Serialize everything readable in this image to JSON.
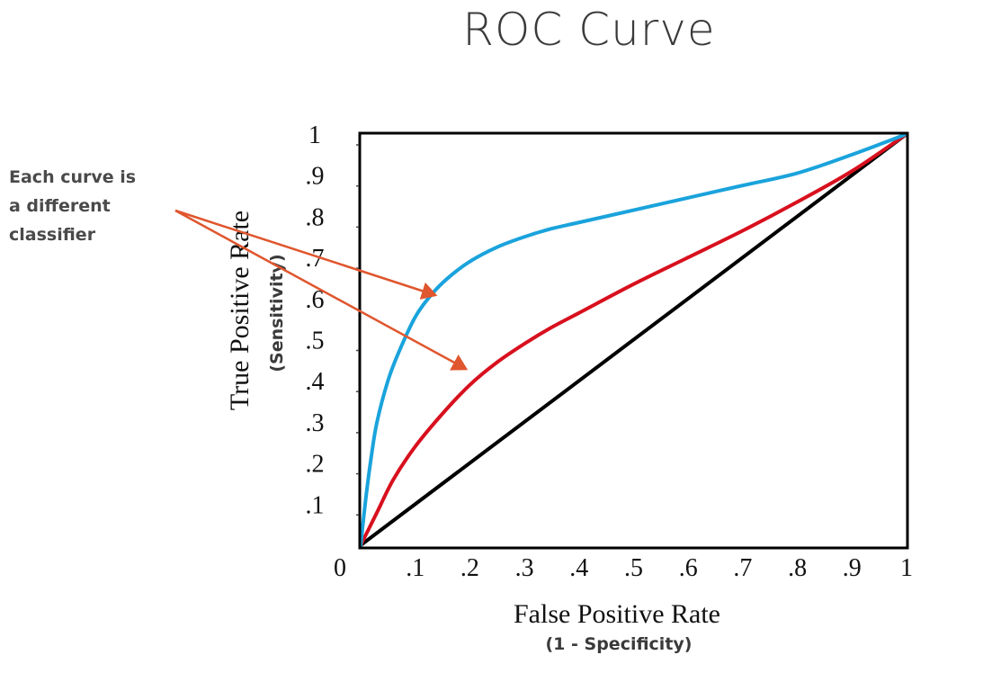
{
  "page": {
    "title": "ROC Curve",
    "annotation_lines": [
      "Each curve is",
      "a different",
      "classifier"
    ]
  },
  "colors": {
    "curve_blue": "#1aa3dc",
    "curve_red": "#d8101e",
    "diagonal": "#000000",
    "arrow": "#e0562e",
    "text": "#4a4a4a"
  },
  "chart_data": {
    "type": "line",
    "title": "ROC Curve",
    "xlabel": "False Positive Rate",
    "xlabel_sub": "(1 - Specificity)",
    "ylabel": "True Positive Rate",
    "ylabel_sub": "(Sensitivity)",
    "xlim": [
      0,
      1
    ],
    "ylim": [
      0,
      1
    ],
    "x_ticks": [
      ".1",
      ".2",
      ".3",
      ".4",
      ".5",
      ".6",
      ".7",
      ".8",
      ".9",
      "1"
    ],
    "y_ticks": [
      ".1",
      ".2",
      ".3",
      ".4",
      ".5",
      ".6",
      ".7",
      ".8",
      ".9",
      "1"
    ],
    "origin_label": "0",
    "grid": false,
    "series": [
      {
        "color": "#1aa3dc",
        "x": [
          0,
          0.01,
          0.02,
          0.03,
          0.05,
          0.07,
          0.1,
          0.13,
          0.16,
          0.2,
          0.25,
          0.3,
          0.35,
          0.4,
          0.5,
          0.6,
          0.7,
          0.8,
          0.9,
          1.0
        ],
        "y": [
          0,
          0.12,
          0.22,
          0.3,
          0.4,
          0.47,
          0.555,
          0.61,
          0.65,
          0.69,
          0.725,
          0.75,
          0.77,
          0.785,
          0.815,
          0.845,
          0.875,
          0.905,
          0.95,
          1.0
        ]
      },
      {
        "color": "#d8101e",
        "x": [
          0,
          0.03,
          0.06,
          0.1,
          0.15,
          0.2,
          0.25,
          0.3,
          0.35,
          0.4,
          0.5,
          0.6,
          0.7,
          0.8,
          0.9,
          1.0
        ],
        "y": [
          0,
          0.08,
          0.16,
          0.24,
          0.32,
          0.39,
          0.445,
          0.49,
          0.53,
          0.565,
          0.635,
          0.7,
          0.765,
          0.835,
          0.91,
          1.0
        ]
      },
      {
        "color": "#000000",
        "x": [
          0,
          1
        ],
        "y": [
          0,
          1
        ]
      }
    ]
  }
}
